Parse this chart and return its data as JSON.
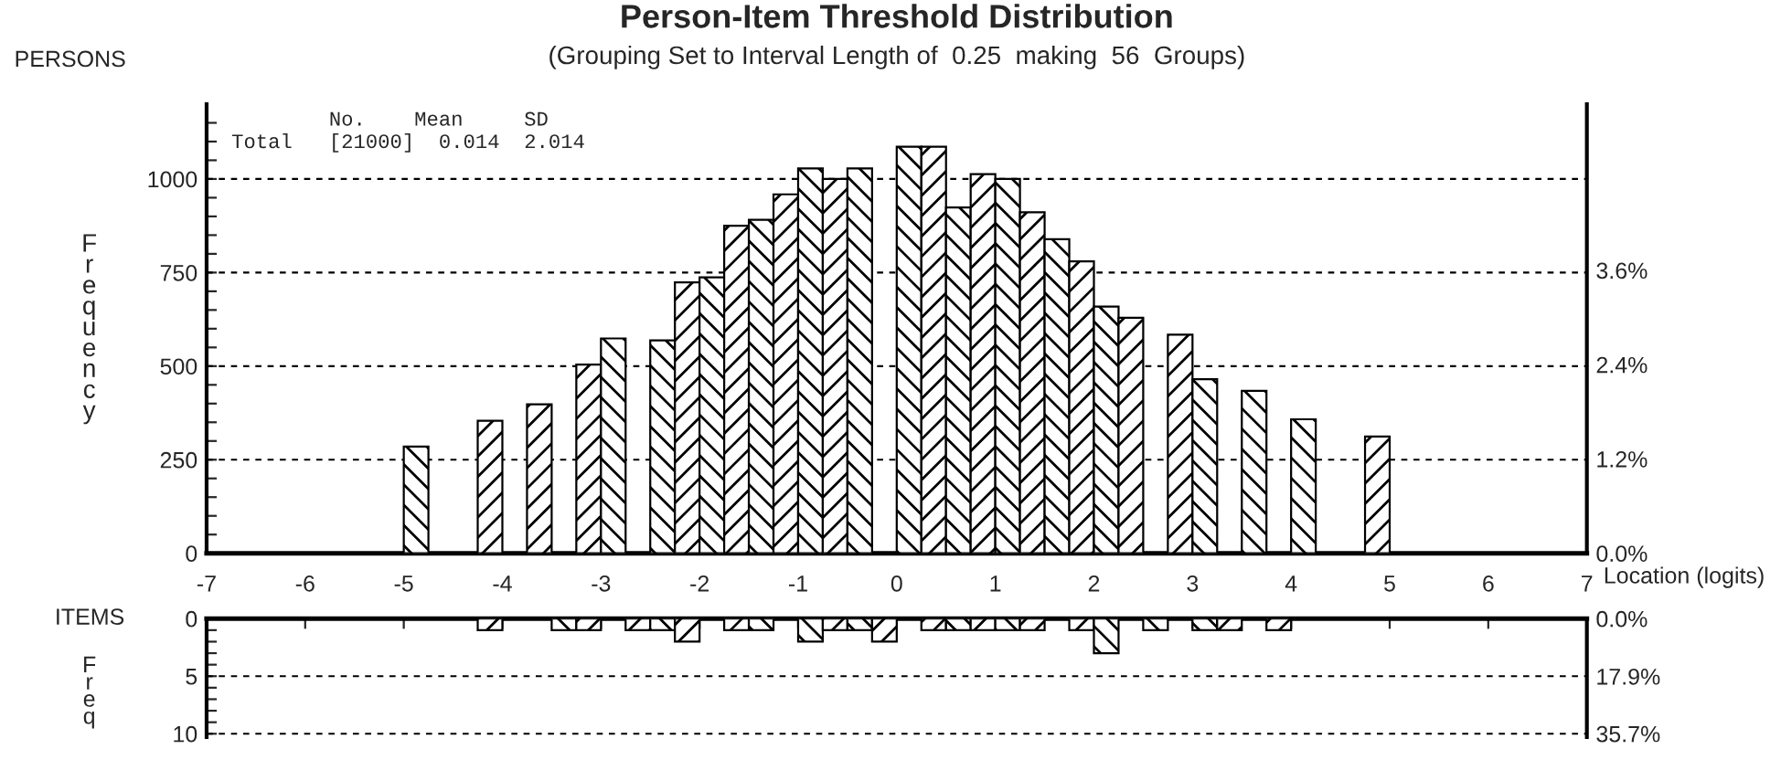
{
  "chart_data": [
    {
      "type": "histogram",
      "title": "Person-Item Threshold Distribution",
      "subtitle": "(Grouping Set to Interval Length of  0.25  making  56  Groups)",
      "xlabel": "Location (logits)",
      "ylabel": "Frequency",
      "annotations": [
        "PERSONS",
        "        No.    Mean     SD",
        "Total   [21000]  0.014  2.014"
      ],
      "bins": [
        -7,
        -6.75,
        -6.5,
        -6.25,
        -6,
        -5.75,
        -5.5,
        -5.25,
        -5,
        -4.75,
        -4.5,
        -4.25,
        -4,
        -3.75,
        -3.5,
        -3.25,
        -3,
        -2.75,
        -2.5,
        -2.25,
        -2,
        -1.75,
        -1.5,
        -1.25,
        -1,
        -0.75,
        -0.5,
        -0.25,
        0,
        0.25,
        0.5,
        0.75,
        1,
        1.25,
        1.5,
        1.75,
        2,
        2.25,
        2.5,
        2.75,
        3,
        3.25,
        3.5,
        3.75,
        4,
        4.25,
        4.5,
        4.75,
        5,
        5.25,
        5.5,
        5.75,
        6,
        6.25,
        6.5,
        6.75,
        7
      ],
      "values": [
        0,
        0,
        0,
        0,
        0,
        0,
        0,
        0,
        285,
        0,
        0,
        354,
        0,
        398,
        0,
        504,
        574,
        0,
        569,
        724,
        737,
        875,
        891,
        959,
        1028,
        1000,
        1028,
        0,
        1086,
        1086,
        924,
        1013,
        1000,
        911,
        839,
        780,
        659,
        629,
        0,
        584,
        465,
        0,
        434,
        0,
        358,
        0,
        0,
        312,
        0,
        0,
        0,
        0,
        0,
        0,
        0,
        0
      ],
      "color": "#000000",
      "xlim": [
        -7,
        7
      ],
      "xticks": [
        -7,
        -6,
        -5,
        -4,
        -3,
        -2,
        -1,
        0,
        1,
        2,
        3,
        4,
        5,
        6,
        7
      ],
      "ylim": [
        0,
        1200
      ],
      "yticks": [
        0,
        {
          "value": 50,
          "label": null
        },
        {
          "value": 100,
          "label": null
        },
        {
          "value": 150,
          "label": null
        },
        {
          "value": 200,
          "label": null
        },
        250,
        {
          "value": 300,
          "label": null
        },
        {
          "value": 350,
          "label": null
        },
        {
          "value": 400,
          "label": null
        },
        {
          "value": 450,
          "label": null
        },
        500,
        {
          "value": 550,
          "label": null
        },
        {
          "value": 600,
          "label": null
        },
        {
          "value": 650,
          "label": null
        },
        {
          "value": 700,
          "label": null
        },
        750,
        {
          "value": 800,
          "label": null
        },
        {
          "value": 850,
          "label": null
        },
        {
          "value": 900,
          "label": null
        },
        {
          "value": 950,
          "label": null
        },
        1000,
        {
          "value": 1050,
          "label": null
        },
        {
          "value": 1100,
          "label": null
        },
        {
          "value": 1150,
          "label": null
        }
      ],
      "y2lim": [
        0,
        5.714
      ],
      "y2ticks": [
        {
          "value": 0,
          "label": "0.0%"
        },
        {
          "value": 1.2,
          "label": "1.2%"
        },
        {
          "value": 2.4,
          "label": "2.4%"
        },
        {
          "value": 3.6,
          "label": "3.6%"
        }
      ],
      "grid": "y"
    },
    {
      "type": "histogram",
      "ylabel": "Freq",
      "annotations": [
        "ITEMS"
      ],
      "bins": [
        -7,
        -6.75,
        -6.5,
        -6.25,
        -6,
        -5.75,
        -5.5,
        -5.25,
        -5,
        -4.75,
        -4.5,
        -4.25,
        -4,
        -3.75,
        -3.5,
        -3.25,
        -3,
        -2.75,
        -2.5,
        -2.25,
        -2,
        -1.75,
        -1.5,
        -1.25,
        -1,
        -0.75,
        -0.5,
        -0.25,
        0,
        0.25,
        0.5,
        0.75,
        1,
        1.25,
        1.5,
        1.75,
        2,
        2.25,
        2.5,
        2.75,
        3,
        3.25,
        3.5,
        3.75,
        4,
        4.25,
        4.5,
        4.75,
        5,
        5.25,
        5.5,
        5.75,
        6,
        6.25,
        6.5,
        6.75,
        7
      ],
      "values": [
        0,
        0,
        0,
        0,
        0,
        0,
        0,
        0,
        0,
        0,
        0,
        1,
        0,
        0,
        1,
        1,
        0,
        1,
        1,
        2,
        0,
        1,
        1,
        0,
        2,
        1,
        1,
        2,
        0,
        1,
        1,
        1,
        1,
        1,
        0,
        1,
        3,
        0,
        1,
        0,
        1,
        1,
        0,
        1,
        0,
        0,
        0,
        0,
        0,
        0,
        0,
        0,
        0,
        0,
        0,
        0
      ],
      "color": "#000000",
      "xlim": [
        -7,
        7
      ],
      "xticks": [
        -7,
        -6,
        -5,
        -4,
        -3,
        -2,
        -1,
        0,
        1,
        2,
        3,
        4,
        5,
        6,
        7
      ],
      "ylim": [
        10.3,
        0
      ],
      "yticks": [
        0,
        {
          "value": 1,
          "label": null
        },
        {
          "value": 2,
          "label": null
        },
        {
          "value": 3,
          "label": null
        },
        {
          "value": 4,
          "label": null
        },
        5,
        {
          "value": 6,
          "label": null
        },
        {
          "value": 7,
          "label": null
        },
        {
          "value": 8,
          "label": null
        },
        {
          "value": 9,
          "label": null
        },
        10
      ],
      "y2lim": [
        36.8,
        0
      ],
      "y2ticks": [
        {
          "value": 0,
          "label": "0.0%"
        },
        {
          "value": 17.9,
          "label": "17.9%"
        },
        {
          "value": 35.7,
          "label": "35.7%"
        }
      ],
      "grid": "y",
      "tick_labels": "y"
    }
  ]
}
